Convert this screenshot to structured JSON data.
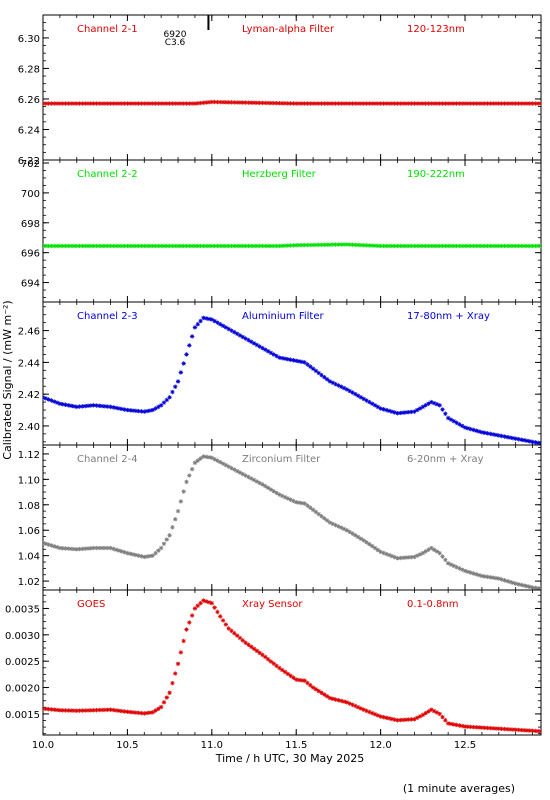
{
  "figure": {
    "ylabel": "Calibrated Signal / (mW m⁻²)",
    "xlabel": "Time / h UTC, 30 May 2025",
    "footnote": "(1 minute averages)",
    "xlim": [
      10.0,
      12.95
    ],
    "xticks": [
      10.0,
      10.5,
      11.0,
      11.5,
      12.0,
      12.5
    ],
    "xtick_labels": [
      "10.0",
      "10.5",
      "11.0",
      "11.5",
      "12.0",
      "12.5"
    ],
    "marker": {
      "time": 10.98,
      "labels": [
        "6920",
        "C3.6"
      ]
    }
  },
  "chart_data": [
    {
      "type": "scatter",
      "panel": "Channel 2-1",
      "channel_label": "Channel 2-1",
      "filter_label": "Lyman-alpha Filter",
      "band_label": "120-123nm",
      "color": "#e00000",
      "label_color": "#e00000",
      "ylim": [
        6.22,
        6.315
      ],
      "yticks": [
        6.22,
        6.24,
        6.26,
        6.28,
        6.3
      ],
      "ytick_labels": [
        "6.22",
        "6.24",
        "6.26",
        "6.28",
        "6.30"
      ],
      "x": [
        10.0,
        10.5,
        10.9,
        11.0,
        11.5,
        12.0,
        12.5,
        12.95
      ],
      "y": [
        6.257,
        6.257,
        6.257,
        6.258,
        6.257,
        6.257,
        6.257,
        6.257
      ]
    },
    {
      "type": "scatter",
      "panel": "Channel 2-2",
      "channel_label": "Channel 2-2",
      "filter_label": "Herzberg Filter",
      "band_label": "190-222nm",
      "color": "#00e000",
      "label_color": "#00e000",
      "ylim": [
        692.7,
        702.2
      ],
      "yticks": [
        694,
        696,
        698,
        700,
        702
      ],
      "ytick_labels": [
        "694",
        "696",
        "698",
        "700",
        "702"
      ],
      "x": [
        10.0,
        10.5,
        11.0,
        11.4,
        11.5,
        11.8,
        12.0,
        12.5,
        12.95
      ],
      "y": [
        696.45,
        696.45,
        696.45,
        696.45,
        696.5,
        696.55,
        696.45,
        696.45,
        696.45
      ]
    },
    {
      "type": "scatter",
      "panel": "Channel 2-3",
      "channel_label": "Channel 2-3",
      "filter_label": "Aluminium Filter",
      "band_label": "17-80nm + Xray",
      "color": "#0000d8",
      "label_color": "#0000d8",
      "ylim": [
        2.388,
        2.478
      ],
      "yticks": [
        2.4,
        2.42,
        2.44,
        2.46
      ],
      "ytick_labels": [
        "2.40",
        "2.42",
        "2.44",
        "2.46"
      ],
      "x": [
        10.0,
        10.05,
        10.1,
        10.2,
        10.3,
        10.4,
        10.5,
        10.6,
        10.65,
        10.7,
        10.75,
        10.8,
        10.85,
        10.9,
        10.95,
        11.0,
        11.1,
        11.2,
        11.3,
        11.4,
        11.5,
        11.55,
        11.6,
        11.7,
        11.8,
        11.9,
        12.0,
        12.1,
        12.2,
        12.25,
        12.3,
        12.35,
        12.4,
        12.5,
        12.6,
        12.7,
        12.8,
        12.9,
        12.95
      ],
      "y": [
        2.418,
        2.416,
        2.414,
        2.412,
        2.413,
        2.412,
        2.41,
        2.409,
        2.41,
        2.413,
        2.418,
        2.428,
        2.445,
        2.462,
        2.468,
        2.467,
        2.461,
        2.455,
        2.449,
        2.443,
        2.441,
        2.44,
        2.436,
        2.428,
        2.423,
        2.417,
        2.411,
        2.408,
        2.409,
        2.412,
        2.415,
        2.413,
        2.405,
        2.399,
        2.396,
        2.394,
        2.392,
        2.39,
        2.389
      ]
    },
    {
      "type": "scatter",
      "panel": "Channel 2-4",
      "channel_label": "Channel 2-4",
      "filter_label": "Zirconium Filter",
      "band_label": "6-20nm + Xray",
      "color": "#7d7d7d",
      "label_color": "#7d7d7d",
      "ylim": [
        1.013,
        1.127
      ],
      "yticks": [
        1.02,
        1.04,
        1.06,
        1.08,
        1.1,
        1.12
      ],
      "ytick_labels": [
        "1.02",
        "1.04",
        "1.06",
        "1.08",
        "1.10",
        "1.12"
      ],
      "x": [
        10.0,
        10.05,
        10.1,
        10.2,
        10.3,
        10.4,
        10.5,
        10.6,
        10.65,
        10.7,
        10.75,
        10.8,
        10.85,
        10.9,
        10.95,
        11.0,
        11.1,
        11.2,
        11.3,
        11.4,
        11.5,
        11.55,
        11.6,
        11.7,
        11.8,
        11.9,
        12.0,
        12.1,
        12.2,
        12.25,
        12.3,
        12.35,
        12.4,
        12.5,
        12.6,
        12.7,
        12.8,
        12.9,
        12.95
      ],
      "y": [
        1.05,
        1.048,
        1.046,
        1.045,
        1.046,
        1.046,
        1.042,
        1.039,
        1.04,
        1.046,
        1.056,
        1.075,
        1.098,
        1.113,
        1.118,
        1.117,
        1.11,
        1.103,
        1.096,
        1.088,
        1.082,
        1.081,
        1.076,
        1.066,
        1.06,
        1.052,
        1.043,
        1.038,
        1.039,
        1.042,
        1.046,
        1.042,
        1.034,
        1.028,
        1.024,
        1.022,
        1.018,
        1.015,
        1.014
      ]
    },
    {
      "type": "scatter",
      "panel": "GOES",
      "channel_label": "GOES",
      "filter_label": "Xray Sensor",
      "band_label": "0.1-0.8nm",
      "color": "#e00000",
      "label_color": "#e00000",
      "ylim": [
        0.0011,
        0.00385
      ],
      "yticks": [
        0.0015,
        0.002,
        0.0025,
        0.003,
        0.0035
      ],
      "ytick_labels": [
        "0.0015",
        "0.0020",
        "0.0025",
        "0.0030",
        "0.0035"
      ],
      "x": [
        10.0,
        10.1,
        10.2,
        10.3,
        10.4,
        10.5,
        10.6,
        10.65,
        10.7,
        10.75,
        10.8,
        10.85,
        10.9,
        10.95,
        11.0,
        11.05,
        11.1,
        11.2,
        11.3,
        11.4,
        11.5,
        11.55,
        11.6,
        11.7,
        11.8,
        11.9,
        12.0,
        12.1,
        12.2,
        12.25,
        12.3,
        12.35,
        12.4,
        12.5,
        12.6,
        12.7,
        12.8,
        12.9,
        12.95
      ],
      "y": [
        0.0016,
        0.00157,
        0.00156,
        0.00157,
        0.00158,
        0.00154,
        0.00151,
        0.00153,
        0.00163,
        0.0019,
        0.00245,
        0.0031,
        0.0035,
        0.00365,
        0.0036,
        0.00335,
        0.00312,
        0.00285,
        0.00262,
        0.00237,
        0.00215,
        0.00213,
        0.002,
        0.0018,
        0.00172,
        0.00158,
        0.00145,
        0.00138,
        0.0014,
        0.00148,
        0.00158,
        0.0015,
        0.00132,
        0.00126,
        0.00124,
        0.00122,
        0.0012,
        0.00118,
        0.00117
      ]
    }
  ]
}
